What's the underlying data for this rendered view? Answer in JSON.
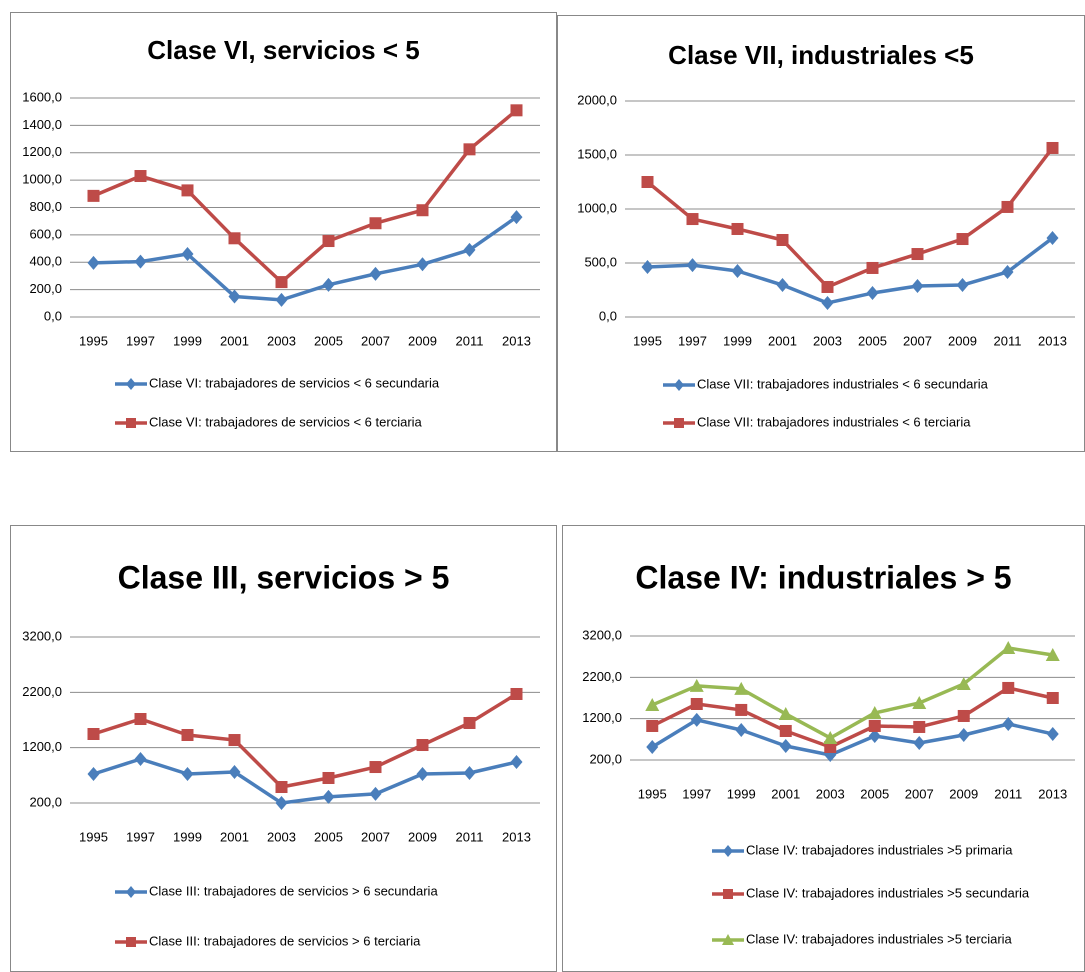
{
  "chart_data": [
    {
      "type": "line",
      "title": "Clase VI, servicios < 5",
      "categories": [
        "1995",
        "1997",
        "1999",
        "2001",
        "2003",
        "2005",
        "2007",
        "2009",
        "2011",
        "2013"
      ],
      "ylim": [
        0,
        1600
      ],
      "yticks": [
        {
          "value": 0,
          "label": "0,0"
        },
        {
          "value": 200,
          "label": "200,0"
        },
        {
          "value": 400,
          "label": "400,0"
        },
        {
          "value": 600,
          "label": "600,0"
        },
        {
          "value": 800,
          "label": "800,0"
        },
        {
          "value": 1000,
          "label": "1000,0"
        },
        {
          "value": 1200,
          "label": "1200,0"
        },
        {
          "value": 1400,
          "label": "1400,0"
        },
        {
          "value": 1600,
          "label": "1600,0"
        }
      ],
      "grid": true,
      "series": [
        {
          "name": "Clase VI: trabajadores de servicios < 6 secundaria",
          "color": "#4a7ebb",
          "marker": "diamond",
          "values": [
            395,
            405,
            460,
            150,
            125,
            235,
            315,
            385,
            490,
            730
          ]
        },
        {
          "name": "Clase VI: trabajadores de servicios < 6 terciaria",
          "color": "#be4b48",
          "marker": "square",
          "values": [
            885,
            1030,
            925,
            575,
            255,
            555,
            685,
            780,
            1225,
            1510
          ]
        }
      ]
    },
    {
      "type": "line",
      "title": "Clase VII, industriales <5",
      "categories": [
        "1995",
        "1997",
        "1999",
        "2001",
        "2003",
        "2005",
        "2007",
        "2009",
        "2011",
        "2013"
      ],
      "ylim": [
        0,
        2000
      ],
      "yticks": [
        {
          "value": 0,
          "label": "0,0"
        },
        {
          "value": 500,
          "label": "500,0"
        },
        {
          "value": 1000,
          "label": "1000,0"
        },
        {
          "value": 1500,
          "label": "1500,0"
        },
        {
          "value": 2000,
          "label": "2000,0"
        }
      ],
      "grid": true,
      "series": [
        {
          "name": "Clase VII: trabajadores industriales < 6 secundaria",
          "color": "#4a7ebb",
          "marker": "diamond",
          "values": [
            463,
            480,
            426,
            296,
            130,
            222,
            287,
            296,
            417,
            731
          ]
        },
        {
          "name": "Clase VII: trabajadores industriales < 6 terciaria",
          "color": "#be4b48",
          "marker": "square",
          "values": [
            1250,
            907,
            815,
            713,
            278,
            454,
            583,
            722,
            1019,
            1565
          ]
        }
      ]
    },
    {
      "type": "line",
      "title": "Clase III, servicios > 5",
      "categories": [
        "1995",
        "1997",
        "1999",
        "2001",
        "2003",
        "2005",
        "2007",
        "2009",
        "2011",
        "2013"
      ],
      "ylim": [
        200,
        3200
      ],
      "yticks": [
        {
          "value": 200,
          "label": "200,0"
        },
        {
          "value": 1200,
          "label": "1200,0"
        },
        {
          "value": 2200,
          "label": "2200,0"
        },
        {
          "value": 3200,
          "label": "3200,0"
        }
      ],
      "grid": true,
      "series": [
        {
          "name": "Clase III: trabajadores de servicios > 6 secundaria",
          "color": "#4a7ebb",
          "marker": "diamond",
          "values": [
            724,
            995,
            724,
            760,
            200,
            310,
            365,
            724,
            742,
            940
          ]
        },
        {
          "name": "Clase III: trabajadores de servicios > 6 terciaria",
          "color": "#be4b48",
          "marker": "square",
          "values": [
            1447,
            1718,
            1429,
            1338,
            489,
            652,
            850,
            1248,
            1646,
            2170
          ]
        }
      ]
    },
    {
      "type": "line",
      "title": "Clase IV: industriales > 5",
      "categories": [
        "1995",
        "1997",
        "1999",
        "2001",
        "2003",
        "2005",
        "2007",
        "2009",
        "2011",
        "2013"
      ],
      "ylim": [
        200,
        3200
      ],
      "yticks": [
        {
          "value": 200,
          "label": "200,0"
        },
        {
          "value": 1200,
          "label": "1200,0"
        },
        {
          "value": 2200,
          "label": "2200,0"
        },
        {
          "value": 3200,
          "label": "3200,0"
        }
      ],
      "grid": true,
      "series": [
        {
          "name": "Clase IV: trabajadores industriales >5 primaria",
          "color": "#4a7ebb",
          "marker": "diamond",
          "values": [
            515,
            1170,
            926,
            539,
            321,
            781,
            612,
            805,
            1071,
            830
          ]
        },
        {
          "name": "Clase IV: trabajadores industriales >5 secundaria",
          "color": "#be4b48",
          "marker": "square",
          "values": [
            1023,
            1555,
            1411,
            902,
            515,
            1023,
            999,
            1265,
            1943,
            1700
          ]
        },
        {
          "name": "Clase IV: trabajadores industriales >5 terciaria",
          "color": "#98b954",
          "marker": "triangle",
          "values": [
            1532,
            1992,
            1920,
            1314,
            733,
            1338,
            1580,
            2040,
            2910,
            2740
          ]
        }
      ]
    }
  ]
}
